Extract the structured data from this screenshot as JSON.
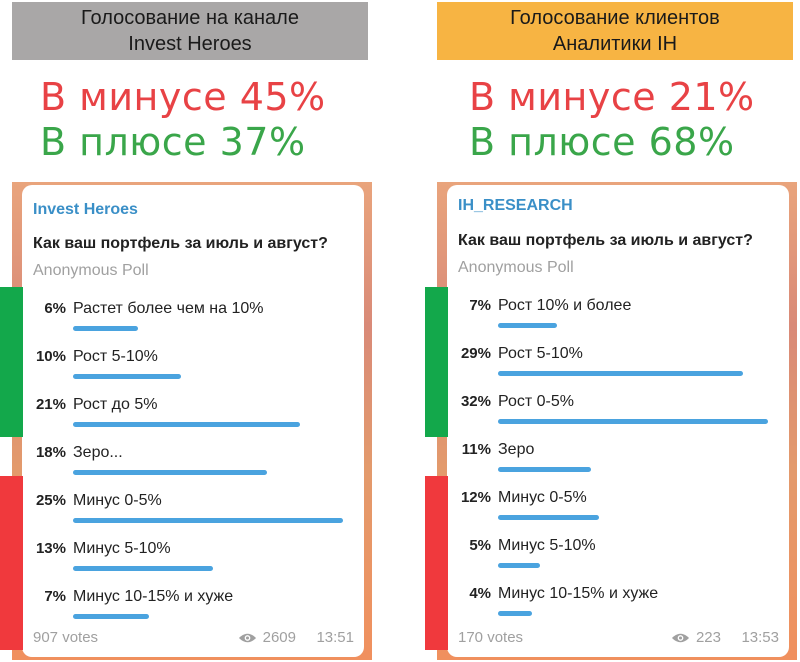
{
  "left": {
    "header": {
      "line1": "Голосование на канале",
      "line2": "Invest Heroes"
    },
    "minus_text": "В минусе 45%",
    "plus_text": "В плюсе 37%",
    "poll": {
      "channel": "Invest Heroes",
      "question": "Как ваш портфель за июль и август?",
      "type": "Anonymous Poll",
      "options": [
        {
          "pct": "6%",
          "label": "Растет более чем на 10%",
          "value": 6
        },
        {
          "pct": "10%",
          "label": "Рост 5-10%",
          "value": 10
        },
        {
          "pct": "21%",
          "label": "Рост до 5%",
          "value": 21
        },
        {
          "pct": "18%",
          "label": "Зеро...",
          "value": 18
        },
        {
          "pct": "25%",
          "label": "Минус 0-5%",
          "value": 25
        },
        {
          "pct": "13%",
          "label": "Минус 5-10%",
          "value": 13
        },
        {
          "pct": "7%",
          "label": "Минус 10-15% и хуже",
          "value": 7
        }
      ],
      "votes": "907 votes",
      "views": "2609",
      "time": "13:51"
    }
  },
  "right": {
    "header": {
      "line1": "Голосование клиентов",
      "line2": "Аналитики IH"
    },
    "minus_text": "В минусе 21%",
    "plus_text": "В плюсе 68%",
    "poll": {
      "channel": "IH_RESEARCH",
      "question": "Как ваш портфель за июль и август?",
      "type": "Anonymous Poll",
      "options": [
        {
          "pct": "7%",
          "label": "Рост 10% и более",
          "value": 7
        },
        {
          "pct": "29%",
          "label": "Рост 5-10%",
          "value": 29
        },
        {
          "pct": "32%",
          "label": "Рост 0-5%",
          "value": 32
        },
        {
          "pct": "11%",
          "label": "Зеро",
          "value": 11
        },
        {
          "pct": "12%",
          "label": "Минус 0-5%",
          "value": 12
        },
        {
          "pct": "5%",
          "label": "Минус 5-10%",
          "value": 5
        },
        {
          "pct": "4%",
          "label": "Минус 10-15% и хуже",
          "value": 4
        }
      ],
      "votes": "170 votes",
      "views": "223",
      "time": "13:53"
    }
  },
  "colors": {
    "minus": "#e84245",
    "plus": "#3aa64a",
    "bar": "#4aa3df",
    "channel_name": "#3a8fc7",
    "green_marker": "#13a84b",
    "red_marker": "#f0393d",
    "left_header_bg": "#a9a7a7",
    "right_header_bg": "#f7b443"
  },
  "icons": {
    "views": "eye-icon"
  }
}
